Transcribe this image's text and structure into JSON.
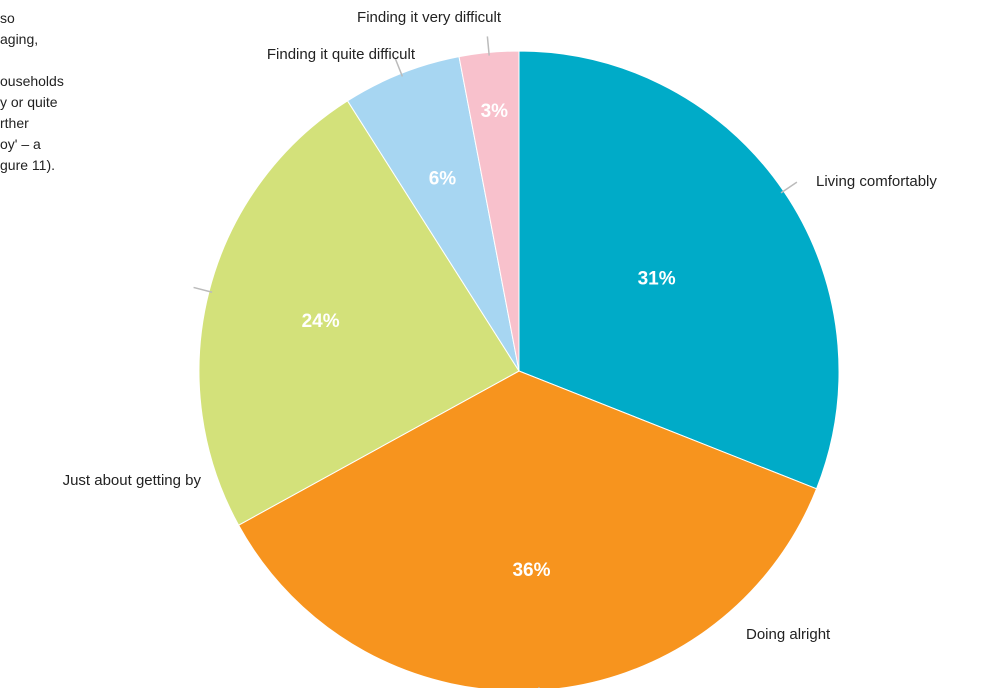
{
  "text_fragment": {
    "lines": [
      "so",
      "aging,",
      "",
      "ouseholds",
      "y or quite",
      "rther",
      "oy' – a",
      "gure 11)."
    ]
  },
  "chart_data": {
    "type": "pie",
    "start_angle_deg": 0,
    "direction": "clockwise",
    "slices": [
      {
        "label": "Living comfortably",
        "value": 31,
        "display": "31%",
        "color": "#00abc8"
      },
      {
        "label": "Doing alright",
        "value": 36,
        "display": "36%",
        "color": "#f7941e"
      },
      {
        "label": "Just about getting by",
        "value": 24,
        "display": "24%",
        "color": "#d3e17a"
      },
      {
        "label": "Finding it quite difficult",
        "value": 6,
        "display": "6%",
        "color": "#a7d6f2"
      },
      {
        "label": "Finding it very difficult",
        "value": 3,
        "display": "3%",
        "color": "#f8c1cc"
      }
    ]
  }
}
